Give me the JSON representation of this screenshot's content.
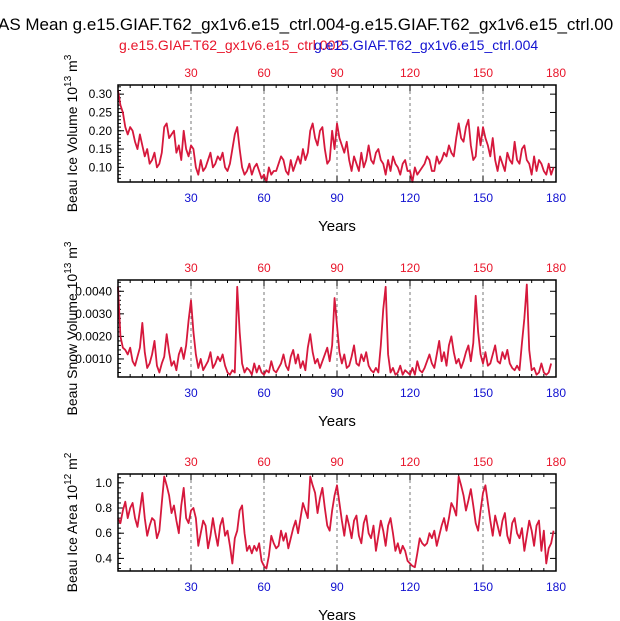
{
  "title": "AS Mean g.e15.GIAF.T62_gx1v6.e15_ctrl.004-g.e15.GIAF.T62_gx1v6.e15_ctrl.00",
  "legend": {
    "red_label": "g.e15.GIAF.T62_gx1v6.e15_ctrl.002",
    "blue_label": "g.e15.GIAF.T62_gx1v6.e15_ctrl.004",
    "red_color": "#e8152a",
    "blue_color": "#1010d0"
  },
  "colors": {
    "line": "#d6183c",
    "axis": "#000000",
    "grid": "#777777"
  },
  "chart_data": [
    {
      "type": "line",
      "title": "",
      "ylabel_main": "Beau Ice Volume 10",
      "ylabel_exp": "13",
      "ylabel_unit": "m",
      "ylabel_unit_exp": "3",
      "xlabel": "Years",
      "xlim": [
        0,
        180
      ],
      "ylim": [
        0.06,
        0.325
      ],
      "yticks": [
        "0.10",
        "0.15",
        "0.20",
        "0.25",
        "0.30"
      ],
      "xticks": [
        "30",
        "60",
        "90",
        "120",
        "150",
        "180"
      ],
      "gridlines_x": [
        30,
        60,
        90,
        120,
        150
      ],
      "series": [
        {
          "name": "g.e15.GIAF.T62_gx1v6.e15_ctrl.002",
          "color": "#e8152a",
          "values": [
            0.31,
            0.27,
            0.25,
            0.21,
            0.19,
            0.21,
            0.2,
            0.17,
            0.15,
            0.19,
            0.16,
            0.13,
            0.15,
            0.11,
            0.12,
            0.14,
            0.1,
            0.11,
            0.14,
            0.21,
            0.22,
            0.18,
            0.19,
            0.2,
            0.14,
            0.16,
            0.12,
            0.2,
            0.15,
            0.13,
            0.16,
            0.15,
            0.1,
            0.08,
            0.12,
            0.09,
            0.1,
            0.12,
            0.14,
            0.1,
            0.11,
            0.13,
            0.12,
            0.14,
            0.1,
            0.09,
            0.11,
            0.15,
            0.19,
            0.21,
            0.15,
            0.1,
            0.08,
            0.09,
            0.11,
            0.08,
            0.1,
            0.11,
            0.09,
            0.07,
            0.08,
            0.06,
            0.1,
            0.08,
            0.09,
            0.09,
            0.11,
            0.13,
            0.12,
            0.09,
            0.08,
            0.12,
            0.09,
            0.11,
            0.13,
            0.11,
            0.15,
            0.12,
            0.14,
            0.2,
            0.22,
            0.18,
            0.16,
            0.2,
            0.21,
            0.15,
            0.11,
            0.12,
            0.2,
            0.15,
            0.22,
            0.18,
            0.16,
            0.14,
            0.17,
            0.12,
            0.09,
            0.13,
            0.11,
            0.09,
            0.14,
            0.1,
            0.12,
            0.16,
            0.12,
            0.11,
            0.14,
            0.15,
            0.12,
            0.11,
            0.08,
            0.12,
            0.09,
            0.13,
            0.11,
            0.1,
            0.08,
            0.11,
            0.12,
            0.09,
            0.09,
            0.06,
            0.1,
            0.08,
            0.09,
            0.1,
            0.11,
            0.13,
            0.12,
            0.09,
            0.09,
            0.13,
            0.11,
            0.12,
            0.14,
            0.13,
            0.16,
            0.14,
            0.13,
            0.18,
            0.22,
            0.18,
            0.17,
            0.21,
            0.23,
            0.16,
            0.12,
            0.13,
            0.21,
            0.16,
            0.21,
            0.18,
            0.16,
            0.13,
            0.18,
            0.12,
            0.09,
            0.13,
            0.11,
            0.09,
            0.14,
            0.12,
            0.11,
            0.17,
            0.12,
            0.11,
            0.15,
            0.16,
            0.12,
            0.11,
            0.08,
            0.13,
            0.09,
            0.12,
            0.11,
            0.09,
            0.08,
            0.11,
            0.08,
            0.1
          ]
        }
      ]
    },
    {
      "type": "line",
      "title": "",
      "ylabel_main": "Beau Snow Volume 10",
      "ylabel_exp": "13",
      "ylabel_unit": "m",
      "ylabel_unit_exp": "3",
      "xlabel": "Years",
      "xlim": [
        0,
        180
      ],
      "ylim": [
        0.0002,
        0.0045
      ],
      "yticks": [
        "0.0010",
        "0.0020",
        "0.0030",
        "0.0040"
      ],
      "xticks": [
        "30",
        "60",
        "90",
        "120",
        "150",
        "180"
      ],
      "gridlines_x": [
        30,
        60,
        90,
        120,
        150
      ],
      "series": [
        {
          "name": "g.e15.GIAF.T62_gx1v6.e15_ctrl.002",
          "color": "#e8152a",
          "values": [
            0.0042,
            0.002,
            0.0015,
            0.0014,
            0.0012,
            0.0015,
            0.0009,
            0.0007,
            0.0011,
            0.0015,
            0.0026,
            0.0013,
            0.0006,
            0.0008,
            0.0012,
            0.0018,
            0.0007,
            0.0004,
            0.0008,
            0.0011,
            0.0021,
            0.0013,
            0.0007,
            0.0009,
            0.0005,
            0.0012,
            0.0015,
            0.001,
            0.0016,
            0.0027,
            0.0036,
            0.0022,
            0.0012,
            0.0006,
            0.001,
            0.0005,
            0.0007,
            0.0009,
            0.0013,
            0.0006,
            0.0008,
            0.0011,
            0.0009,
            0.0012,
            0.0007,
            0.0004,
            0.0003,
            0.0005,
            0.0004,
            0.0042,
            0.0022,
            0.0008,
            0.0004,
            0.0006,
            0.0005,
            0.0003,
            0.0008,
            0.0004,
            0.0007,
            0.0004,
            0.0003,
            0.0005,
            0.0004,
            0.0009,
            0.0005,
            0.0004,
            0.0006,
            0.0008,
            0.0012,
            0.0007,
            0.0005,
            0.0011,
            0.0014,
            0.0008,
            0.0012,
            0.0006,
            0.0009,
            0.0005,
            0.0015,
            0.0021,
            0.0013,
            0.0008,
            0.001,
            0.0006,
            0.0009,
            0.0012,
            0.0015,
            0.0009,
            0.0016,
            0.0037,
            0.0025,
            0.0013,
            0.0008,
            0.0012,
            0.0006,
            0.0007,
            0.0011,
            0.0016,
            0.0008,
            0.0007,
            0.0012,
            0.0009,
            0.0013,
            0.0007,
            0.0005,
            0.0004,
            0.0006,
            0.0004,
            0.0016,
            0.0032,
            0.0042,
            0.0012,
            0.0004,
            0.0006,
            0.0003,
            0.0004,
            0.0007,
            0.0003,
            0.0005,
            0.0004,
            0.0003,
            0.0006,
            0.0003,
            0.0009,
            0.0005,
            0.0004,
            0.0006,
            0.0009,
            0.0012,
            0.0008,
            0.0006,
            0.0012,
            0.0018,
            0.0009,
            0.0013,
            0.0007,
            0.0016,
            0.002,
            0.0013,
            0.0008,
            0.001,
            0.0006,
            0.0009,
            0.0013,
            0.0016,
            0.0009,
            0.0017,
            0.0038,
            0.0022,
            0.0012,
            0.0008,
            0.0013,
            0.0007,
            0.0008,
            0.0012,
            0.0016,
            0.0009,
            0.0008,
            0.0013,
            0.001,
            0.0014,
            0.0008,
            0.0006,
            0.0005,
            0.0007,
            0.0005,
            0.0017,
            0.0028,
            0.0043,
            0.0014,
            0.0005,
            0.0006,
            0.0003,
            0.0004,
            0.0008,
            0.0004,
            0.0003,
            0.0004,
            0.0008
          ]
        }
      ]
    },
    {
      "type": "line",
      "title": "",
      "ylabel_main": "Beau Ice Area 10",
      "ylabel_exp": "12",
      "ylabel_unit": "m",
      "ylabel_unit_exp": "2",
      "xlabel": "Years",
      "xlim": [
        0,
        180
      ],
      "ylim": [
        0.3,
        1.07
      ],
      "yticks": [
        "0.4",
        "0.6",
        "0.8",
        "1.0"
      ],
      "xticks": [
        "30",
        "60",
        "90",
        "120",
        "150",
        "180"
      ],
      "gridlines_x": [
        30,
        60,
        90,
        120,
        150
      ],
      "series": [
        {
          "name": "g.e15.GIAF.T62_gx1v6.e15_ctrl.002",
          "color": "#e8152a",
          "values": [
            0.72,
            0.68,
            0.78,
            0.85,
            0.72,
            0.8,
            0.84,
            0.72,
            0.65,
            0.78,
            0.92,
            0.72,
            0.58,
            0.66,
            0.72,
            0.7,
            0.56,
            0.62,
            0.84,
            1.05,
            0.98,
            0.9,
            0.76,
            0.82,
            0.7,
            0.6,
            0.82,
            0.96,
            0.72,
            0.68,
            0.78,
            0.8,
            0.72,
            0.5,
            0.6,
            0.7,
            0.66,
            0.48,
            0.58,
            0.72,
            0.6,
            0.5,
            0.66,
            0.72,
            0.58,
            0.62,
            0.5,
            0.36,
            0.56,
            0.62,
            0.78,
            0.82,
            0.6,
            0.46,
            0.5,
            0.44,
            0.5,
            0.46,
            0.52,
            0.38,
            0.34,
            0.32,
            0.42,
            0.58,
            0.52,
            0.48,
            0.5,
            0.62,
            0.54,
            0.6,
            0.48,
            0.56,
            0.64,
            0.7,
            0.6,
            0.72,
            0.84,
            0.78,
            0.72,
            1.05,
            0.98,
            0.92,
            0.76,
            0.88,
            0.96,
            0.8,
            0.66,
            0.62,
            0.78,
            0.9,
            0.98,
            0.84,
            0.7,
            0.58,
            0.74,
            0.66,
            0.56,
            0.7,
            0.74,
            0.58,
            0.52,
            0.68,
            0.74,
            0.6,
            0.56,
            0.66,
            0.46,
            0.58,
            0.7,
            0.62,
            0.5,
            0.66,
            0.72,
            0.6,
            0.46,
            0.52,
            0.44,
            0.5,
            0.46,
            0.38,
            0.36,
            0.34,
            0.33,
            0.44,
            0.56,
            0.52,
            0.5,
            0.52,
            0.6,
            0.56,
            0.62,
            0.5,
            0.58,
            0.66,
            0.72,
            0.62,
            0.72,
            0.84,
            0.8,
            0.74,
            1.05,
            0.98,
            0.9,
            0.78,
            0.86,
            0.95,
            0.82,
            0.68,
            0.62,
            0.78,
            0.92,
            0.98,
            0.84,
            0.7,
            0.58,
            0.74,
            0.66,
            0.58,
            0.7,
            0.76,
            0.58,
            0.52,
            0.68,
            0.72,
            0.6,
            0.56,
            0.64,
            0.46,
            0.58,
            0.7,
            0.62,
            0.5,
            0.66,
            0.7,
            0.46,
            0.62,
            0.36,
            0.48,
            0.52,
            0.62
          ]
        }
      ]
    }
  ]
}
